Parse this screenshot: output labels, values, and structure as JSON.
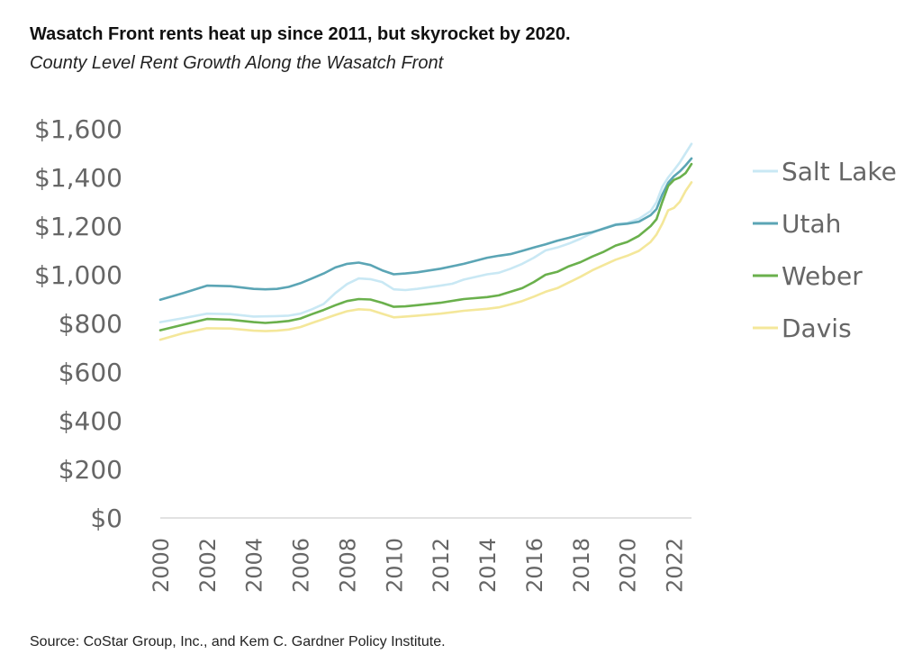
{
  "header": {
    "title": "Wasatch Front rents heat up since 2011, but skyrocket by 2020.",
    "subtitle": "County Level Rent Growth Along the Wasatch Front"
  },
  "footer": {
    "source": "Source: CoStar Group, Inc., and Kem C. Gardner Policy Institute."
  },
  "chart_data": {
    "type": "line",
    "title": "Wasatch Front rents heat up since 2011, but skyrocket by 2020.",
    "subtitle": "County Level Rent Growth Along the Wasatch Front",
    "xlabel": "",
    "ylabel": "",
    "xlim": [
      2000,
      2022.75
    ],
    "ylim": [
      0,
      1600
    ],
    "x_ticks": [
      2000,
      2002,
      2004,
      2006,
      2008,
      2010,
      2012,
      2014,
      2016,
      2018,
      2020,
      2022
    ],
    "y_ticks": [
      0,
      200,
      400,
      600,
      800,
      1000,
      1200,
      1400,
      1600
    ],
    "y_tick_labels": [
      "$0",
      "$200",
      "$400",
      "$600",
      "$800",
      "$1,000",
      "$1,200",
      "$1,400",
      "$1,600"
    ],
    "grid": false,
    "legend_position": "right",
    "series": [
      {
        "name": "Salt Lake",
        "color": "#c9e8f4",
        "points": [
          [
            2000,
            805
          ],
          [
            2001,
            822
          ],
          [
            2002,
            840
          ],
          [
            2003,
            838
          ],
          [
            2004,
            828
          ],
          [
            2005,
            830
          ],
          [
            2005.5,
            832
          ],
          [
            2006,
            840
          ],
          [
            2006.5,
            858
          ],
          [
            2007,
            880
          ],
          [
            2007.5,
            925
          ],
          [
            2008,
            962
          ],
          [
            2008.5,
            985
          ],
          [
            2009,
            982
          ],
          [
            2009.5,
            970
          ],
          [
            2010,
            940
          ],
          [
            2010.5,
            937
          ],
          [
            2011,
            942
          ],
          [
            2012,
            955
          ],
          [
            2012.5,
            963
          ],
          [
            2013,
            980
          ],
          [
            2014,
            1002
          ],
          [
            2014.5,
            1008
          ],
          [
            2015,
            1025
          ],
          [
            2015.5,
            1045
          ],
          [
            2016,
            1070
          ],
          [
            2016.5,
            1100
          ],
          [
            2017,
            1112
          ],
          [
            2017.5,
            1128
          ],
          [
            2018,
            1148
          ],
          [
            2018.5,
            1172
          ],
          [
            2019,
            1192
          ],
          [
            2019.5,
            1208
          ],
          [
            2020,
            1213
          ],
          [
            2020.5,
            1230
          ],
          [
            2021,
            1262
          ],
          [
            2021.25,
            1298
          ],
          [
            2021.5,
            1362
          ],
          [
            2021.75,
            1400
          ],
          [
            2022,
            1430
          ],
          [
            2022.25,
            1462
          ],
          [
            2022.5,
            1500
          ],
          [
            2022.75,
            1538
          ]
        ]
      },
      {
        "name": "Utah",
        "color": "#5ba5b5",
        "points": [
          [
            2000,
            897
          ],
          [
            2001,
            925
          ],
          [
            2002,
            955
          ],
          [
            2003,
            953
          ],
          [
            2004,
            942
          ],
          [
            2004.5,
            940
          ],
          [
            2005,
            942
          ],
          [
            2005.5,
            950
          ],
          [
            2006,
            965
          ],
          [
            2006.5,
            985
          ],
          [
            2007,
            1005
          ],
          [
            2007.5,
            1030
          ],
          [
            2008,
            1045
          ],
          [
            2008.5,
            1050
          ],
          [
            2009,
            1040
          ],
          [
            2009.5,
            1018
          ],
          [
            2010,
            1002
          ],
          [
            2010.5,
            1005
          ],
          [
            2011,
            1010
          ],
          [
            2012,
            1025
          ],
          [
            2013,
            1045
          ],
          [
            2014,
            1070
          ],
          [
            2014.5,
            1078
          ],
          [
            2015,
            1085
          ],
          [
            2015.5,
            1098
          ],
          [
            2016,
            1112
          ],
          [
            2016.5,
            1125
          ],
          [
            2017,
            1140
          ],
          [
            2017.5,
            1152
          ],
          [
            2018,
            1165
          ],
          [
            2018.5,
            1175
          ],
          [
            2019,
            1190
          ],
          [
            2019.5,
            1205
          ],
          [
            2020,
            1210
          ],
          [
            2020.5,
            1218
          ],
          [
            2021,
            1245
          ],
          [
            2021.25,
            1270
          ],
          [
            2021.5,
            1330
          ],
          [
            2021.75,
            1378
          ],
          [
            2022,
            1405
          ],
          [
            2022.25,
            1425
          ],
          [
            2022.5,
            1450
          ],
          [
            2022.75,
            1478
          ]
        ]
      },
      {
        "name": "Weber",
        "color": "#6ab04c",
        "points": [
          [
            2000,
            772
          ],
          [
            2001,
            795
          ],
          [
            2002,
            818
          ],
          [
            2003,
            815
          ],
          [
            2004,
            805
          ],
          [
            2004.5,
            802
          ],
          [
            2005,
            805
          ],
          [
            2005.5,
            810
          ],
          [
            2006,
            820
          ],
          [
            2006.5,
            838
          ],
          [
            2007,
            855
          ],
          [
            2007.5,
            875
          ],
          [
            2008,
            892
          ],
          [
            2008.5,
            900
          ],
          [
            2009,
            898
          ],
          [
            2009.5,
            885
          ],
          [
            2010,
            868
          ],
          [
            2010.5,
            870
          ],
          [
            2011,
            875
          ],
          [
            2012,
            885
          ],
          [
            2013,
            900
          ],
          [
            2014,
            908
          ],
          [
            2014.5,
            915
          ],
          [
            2015,
            930
          ],
          [
            2015.5,
            945
          ],
          [
            2016,
            970
          ],
          [
            2016.5,
            1000
          ],
          [
            2017,
            1012
          ],
          [
            2017.5,
            1035
          ],
          [
            2018,
            1052
          ],
          [
            2018.5,
            1075
          ],
          [
            2019,
            1095
          ],
          [
            2019.5,
            1120
          ],
          [
            2020,
            1135
          ],
          [
            2020.5,
            1160
          ],
          [
            2021,
            1200
          ],
          [
            2021.25,
            1228
          ],
          [
            2021.5,
            1300
          ],
          [
            2021.75,
            1365
          ],
          [
            2022,
            1390
          ],
          [
            2022.25,
            1400
          ],
          [
            2022.5,
            1418
          ],
          [
            2022.75,
            1455
          ]
        ]
      },
      {
        "name": "Davis",
        "color": "#f4e79a",
        "points": [
          [
            2000,
            733
          ],
          [
            2001,
            760
          ],
          [
            2002,
            780
          ],
          [
            2003,
            779
          ],
          [
            2004,
            770
          ],
          [
            2004.5,
            768
          ],
          [
            2005,
            770
          ],
          [
            2005.5,
            775
          ],
          [
            2006,
            785
          ],
          [
            2006.5,
            802
          ],
          [
            2007,
            818
          ],
          [
            2007.5,
            835
          ],
          [
            2008,
            850
          ],
          [
            2008.5,
            858
          ],
          [
            2009,
            855
          ],
          [
            2009.5,
            840
          ],
          [
            2010,
            825
          ],
          [
            2010.5,
            828
          ],
          [
            2011,
            832
          ],
          [
            2012,
            840
          ],
          [
            2013,
            852
          ],
          [
            2014,
            860
          ],
          [
            2014.5,
            866
          ],
          [
            2015,
            878
          ],
          [
            2015.5,
            892
          ],
          [
            2016,
            910
          ],
          [
            2016.5,
            930
          ],
          [
            2017,
            945
          ],
          [
            2017.5,
            968
          ],
          [
            2018,
            992
          ],
          [
            2018.5,
            1018
          ],
          [
            2019,
            1040
          ],
          [
            2019.5,
            1062
          ],
          [
            2020,
            1078
          ],
          [
            2020.5,
            1098
          ],
          [
            2021,
            1135
          ],
          [
            2021.25,
            1165
          ],
          [
            2021.5,
            1210
          ],
          [
            2021.75,
            1265
          ],
          [
            2022,
            1275
          ],
          [
            2022.25,
            1300
          ],
          [
            2022.5,
            1345
          ],
          [
            2022.75,
            1380
          ]
        ]
      }
    ]
  }
}
